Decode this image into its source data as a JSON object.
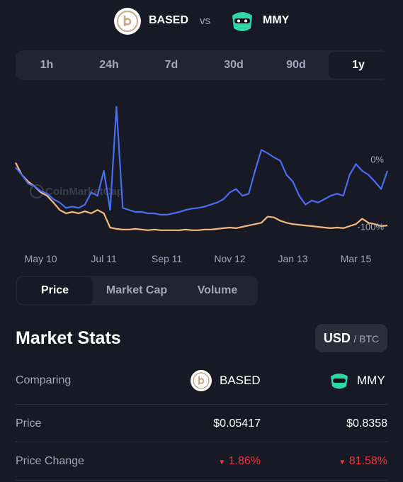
{
  "header": {
    "left": "BASED",
    "vs": "vs",
    "right": "MMY"
  },
  "timeframes": [
    "1h",
    "24h",
    "7d",
    "30d",
    "90d",
    "1y"
  ],
  "chart_data": {
    "type": "line",
    "watermark": "CoinMarketCap",
    "categories": [
      null,
      null,
      null,
      null,
      "May 10",
      null,
      null,
      null,
      null,
      null,
      null,
      null,
      null,
      null,
      "Jul 11",
      null,
      null,
      null,
      null,
      null,
      null,
      null,
      null,
      null,
      "Sep 11",
      null,
      null,
      null,
      null,
      null,
      null,
      null,
      null,
      null,
      "Nov 12",
      null,
      null,
      null,
      null,
      null,
      null,
      null,
      null,
      null,
      "Jan 13",
      null,
      null,
      null,
      null,
      null,
      null,
      null,
      null,
      null,
      "Mar 15",
      null,
      null,
      null,
      null,
      null
    ],
    "series": [
      {
        "color": "#4a6cf0",
        "values": [
          -6,
          -17,
          -30,
          -34,
          -41,
          -45,
          -53,
          -58,
          -66,
          -64,
          -66,
          -61,
          -43,
          -48,
          -11,
          -69,
          84,
          -66,
          -69,
          -72,
          -72,
          -74,
          -74,
          -76,
          -76,
          -74,
          -72,
          -69,
          -67,
          -66,
          -64,
          -61,
          -58,
          -53,
          -43,
          -38,
          -48,
          -45,
          -11,
          20,
          15,
          9,
          4,
          -17,
          -27,
          -48,
          -61,
          -55,
          -58,
          -53,
          -48,
          -45,
          -48,
          -17,
          -1,
          -11,
          -17,
          -27,
          -38,
          -11
        ]
      },
      {
        "color": "#f5b97f",
        "values": [
          1,
          -17,
          -27,
          -34,
          -43,
          -48,
          -58,
          -69,
          -74,
          -72,
          -74,
          -71,
          -74,
          -69,
          -74,
          -95,
          -97,
          -98,
          -98,
          -97,
          -98,
          -99,
          -98,
          -99,
          -99,
          -99,
          -99,
          -98,
          -99,
          -99,
          -98,
          -98,
          -97,
          -96,
          -95,
          -96,
          -94,
          -92,
          -90,
          -88,
          -79,
          -80,
          -85,
          -88,
          -90,
          -91,
          -92,
          -93,
          -94,
          -95,
          -96,
          -95,
          -96,
          -93,
          -90,
          -82,
          -88,
          -90,
          -93,
          -92
        ]
      }
    ],
    "ylim": [
      -115,
      95
    ],
    "yticks": [
      {
        "value": 0,
        "label": "0%"
      },
      {
        "value": -100,
        "label": "-100%"
      }
    ],
    "grid": false
  },
  "metric_tabs": [
    "Price",
    "Market Cap",
    "Volume"
  ],
  "stats": {
    "title": "Market Stats",
    "currency": "USD",
    "alt_currency": "/ BTC",
    "rows": [
      [
        "Comparing",
        "BASED",
        "MMY"
      ],
      [
        "Price",
        "$0.05417",
        "$0.8358"
      ],
      [
        "Price Change",
        "1.86%",
        "81.58%"
      ]
    ]
  }
}
